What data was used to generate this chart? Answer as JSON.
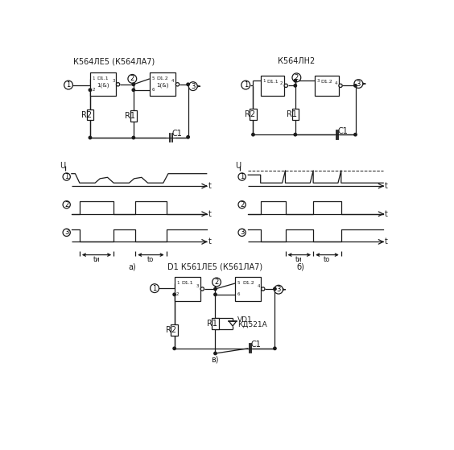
{
  "title_a": "К564ЛЕ5 (К564ЛА7)",
  "title_b": "К564ЛН2",
  "title_c": "D1 К561ЛЕ5 (К561ЛА7)",
  "label_a": "а)",
  "label_b": "б)",
  "label_c": "в)",
  "bg_color": "#ffffff",
  "line_color": "#1a1a1a",
  "font_size": 7,
  "small_font": 5.5
}
